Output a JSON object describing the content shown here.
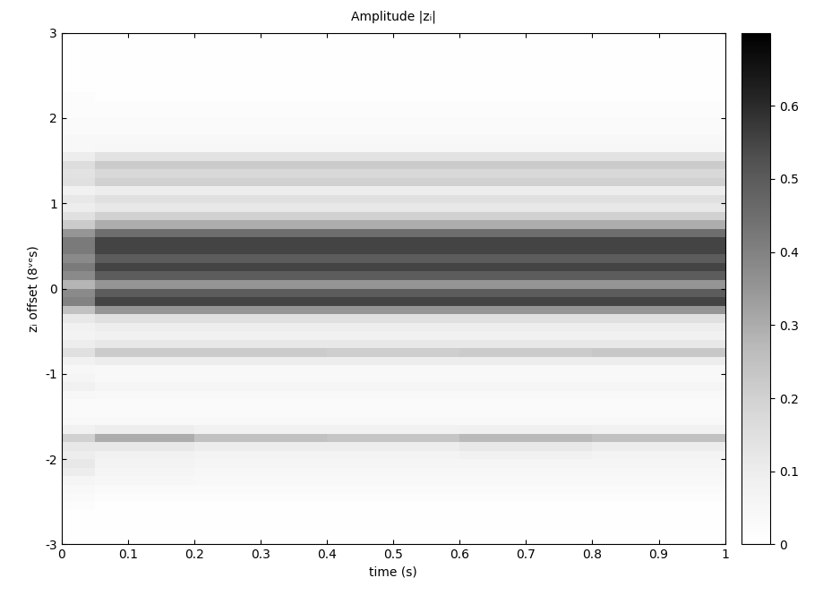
{
  "chart_data": {
    "type": "heatmap",
    "title": "Amplitude |zᵢ|",
    "x_label": "time (s)",
    "y_label": "zᵢ offset (8ᵛᵉs)",
    "x_edges": [
      0,
      0.05,
      0.2,
      0.4,
      0.6,
      0.8,
      1
    ],
    "y_edges": [
      -3,
      -2.9,
      -2.8,
      -2.7,
      -2.6,
      -2.5,
      -2.4,
      -2.3,
      -2.2,
      -2.1,
      -2,
      -1.9,
      -1.8,
      -1.7,
      -1.6,
      -1.5,
      -1.4,
      -1.3,
      -1.2,
      -1.1,
      -1,
      -0.9,
      -0.8,
      -0.7,
      -0.6,
      -0.5,
      -0.4,
      -0.3,
      -0.2,
      -0.1,
      0,
      0.1,
      0.2,
      0.3,
      0.4,
      0.5,
      0.6,
      0.7,
      0.8,
      0.9,
      1,
      1.1,
      1.2,
      1.3,
      1.4,
      1.5,
      1.6,
      1.7,
      1.8,
      1.9,
      2,
      2.1,
      2.2,
      2.3,
      2.4,
      2.5,
      2.6,
      2.7,
      2.8,
      2.9,
      3
    ],
    "cells": [
      [
        0.01,
        0.01,
        0.01,
        0.01,
        0.01,
        0.01
      ],
      [
        0.01,
        0.01,
        0.01,
        0.01,
        0.01,
        0.01
      ],
      [
        0.01,
        0.01,
        0.01,
        0.01,
        0.01,
        0.01
      ],
      [
        0.01,
        0.01,
        0.01,
        0.01,
        0.01,
        0.01
      ],
      [
        0.02,
        0.01,
        0.01,
        0.01,
        0.01,
        0.01
      ],
      [
        0.03,
        0.02,
        0.02,
        0.02,
        0.02,
        0.02
      ],
      [
        0.04,
        0.03,
        0.03,
        0.03,
        0.03,
        0.03
      ],
      [
        0.06,
        0.05,
        0.04,
        0.04,
        0.04,
        0.04
      ],
      [
        0.1,
        0.06,
        0.05,
        0.05,
        0.05,
        0.05
      ],
      [
        0.12,
        0.07,
        0.06,
        0.06,
        0.06,
        0.06
      ],
      [
        0.1,
        0.08,
        0.07,
        0.07,
        0.08,
        0.07
      ],
      [
        0.12,
        0.12,
        0.1,
        0.1,
        0.12,
        0.1
      ],
      [
        0.2,
        0.3,
        0.25,
        0.24,
        0.27,
        0.25
      ],
      [
        0.08,
        0.1,
        0.08,
        0.08,
        0.09,
        0.08
      ],
      [
        0.04,
        0.04,
        0.04,
        0.04,
        0.04,
        0.04
      ],
      [
        0.03,
        0.03,
        0.03,
        0.03,
        0.03,
        0.03
      ],
      [
        0.03,
        0.03,
        0.03,
        0.03,
        0.03,
        0.03
      ],
      [
        0.05,
        0.04,
        0.04,
        0.04,
        0.04,
        0.04
      ],
      [
        0.08,
        0.06,
        0.06,
        0.06,
        0.06,
        0.06
      ],
      [
        0.06,
        0.04,
        0.04,
        0.04,
        0.04,
        0.04
      ],
      [
        0.05,
        0.04,
        0.04,
        0.04,
        0.04,
        0.04
      ],
      [
        0.08,
        0.1,
        0.1,
        0.1,
        0.1,
        0.1
      ],
      [
        0.15,
        0.22,
        0.22,
        0.21,
        0.22,
        0.23
      ],
      [
        0.1,
        0.12,
        0.12,
        0.12,
        0.12,
        0.12
      ],
      [
        0.07,
        0.08,
        0.08,
        0.08,
        0.08,
        0.08
      ],
      [
        0.08,
        0.1,
        0.1,
        0.1,
        0.1,
        0.1
      ],
      [
        0.12,
        0.15,
        0.15,
        0.15,
        0.15,
        0.15
      ],
      [
        0.25,
        0.35,
        0.35,
        0.35,
        0.35,
        0.35
      ],
      [
        0.4,
        0.55,
        0.55,
        0.55,
        0.55,
        0.55
      ],
      [
        0.38,
        0.5,
        0.5,
        0.5,
        0.5,
        0.5
      ],
      [
        0.28,
        0.35,
        0.35,
        0.35,
        0.35,
        0.35
      ],
      [
        0.38,
        0.5,
        0.5,
        0.5,
        0.5,
        0.5
      ],
      [
        0.42,
        0.55,
        0.55,
        0.55,
        0.55,
        0.55
      ],
      [
        0.38,
        0.5,
        0.5,
        0.5,
        0.5,
        0.5
      ],
      [
        0.42,
        0.55,
        0.55,
        0.55,
        0.55,
        0.55
      ],
      [
        0.42,
        0.55,
        0.55,
        0.55,
        0.55,
        0.55
      ],
      [
        0.35,
        0.45,
        0.45,
        0.45,
        0.45,
        0.45
      ],
      [
        0.22,
        0.3,
        0.3,
        0.3,
        0.3,
        0.3
      ],
      [
        0.15,
        0.2,
        0.2,
        0.2,
        0.2,
        0.2
      ],
      [
        0.1,
        0.12,
        0.12,
        0.12,
        0.12,
        0.12
      ],
      [
        0.12,
        0.15,
        0.15,
        0.15,
        0.15,
        0.15
      ],
      [
        0.08,
        0.1,
        0.1,
        0.1,
        0.1,
        0.1
      ],
      [
        0.15,
        0.2,
        0.2,
        0.2,
        0.2,
        0.2
      ],
      [
        0.14,
        0.18,
        0.18,
        0.18,
        0.18,
        0.18
      ],
      [
        0.16,
        0.22,
        0.22,
        0.22,
        0.22,
        0.22
      ],
      [
        0.1,
        0.14,
        0.14,
        0.14,
        0.14,
        0.14
      ],
      [
        0.04,
        0.05,
        0.05,
        0.05,
        0.05,
        0.05
      ],
      [
        0.04,
        0.04,
        0.04,
        0.04,
        0.04,
        0.04
      ],
      [
        0.03,
        0.03,
        0.03,
        0.03,
        0.03,
        0.03
      ],
      [
        0.03,
        0.03,
        0.03,
        0.03,
        0.03,
        0.03
      ],
      [
        0.02,
        0.02,
        0.02,
        0.02,
        0.02,
        0.02
      ],
      [
        0.02,
        0.02,
        0.02,
        0.02,
        0.02,
        0.02
      ],
      [
        0.02,
        0.01,
        0.01,
        0.01,
        0.01,
        0.01
      ],
      [
        0.01,
        0.01,
        0.01,
        0.01,
        0.01,
        0.01
      ],
      [
        0.01,
        0.01,
        0.01,
        0.01,
        0.01,
        0.01
      ],
      [
        0.01,
        0.01,
        0.01,
        0.01,
        0.01,
        0.01
      ],
      [
        0.01,
        0.01,
        0.01,
        0.01,
        0.01,
        0.01
      ],
      [
        0.01,
        0.01,
        0.01,
        0.01,
        0.01,
        0.01
      ],
      [
        0.01,
        0.01,
        0.01,
        0.01,
        0.01,
        0.01
      ],
      [
        0.01,
        0.01,
        0.01,
        0.01,
        0.01,
        0.01
      ]
    ],
    "xlim": [
      0,
      1
    ],
    "xticks": [
      0,
      0.1,
      0.2,
      0.3,
      0.4,
      0.5,
      0.6,
      0.7,
      0.8,
      0.9,
      1
    ],
    "ylim": [
      -3,
      3
    ],
    "yticks": [
      -3,
      -2,
      -1,
      0,
      1,
      2,
      3
    ],
    "colorbar_range": [
      0,
      0.7
    ],
    "colorbar_ticks": [
      0,
      0.1,
      0.2,
      0.3,
      0.4,
      0.5,
      0.6
    ]
  }
}
